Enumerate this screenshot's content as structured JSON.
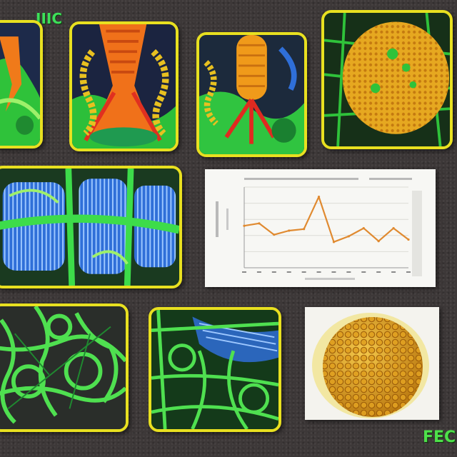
{
  "labels": {
    "top_left": "IIIC",
    "bottom_right": "FEC"
  },
  "colors": {
    "background": "#3d3838",
    "frame": "#e8e020",
    "tissue_green": "#34c23c",
    "accent_orange": "#f07a1a",
    "cell_gold": "#d99a18",
    "membrane_blue": "#2f6fd8",
    "chart_line": "#e08a30"
  },
  "chart_data": {
    "type": "line",
    "title": "",
    "xlabel": "",
    "ylabel": "",
    "x": [
      1,
      2,
      3,
      4,
      5,
      6,
      7,
      8,
      9,
      10,
      11,
      12
    ],
    "series": [
      {
        "values": [
          5.2,
          5.5,
          4.1,
          4.6,
          4.8,
          8.8,
          3.2,
          3.9,
          4.9,
          3.3,
          4.9,
          3.5
        ]
      }
    ],
    "ylim": [
      0,
      10
    ],
    "grid": true
  }
}
